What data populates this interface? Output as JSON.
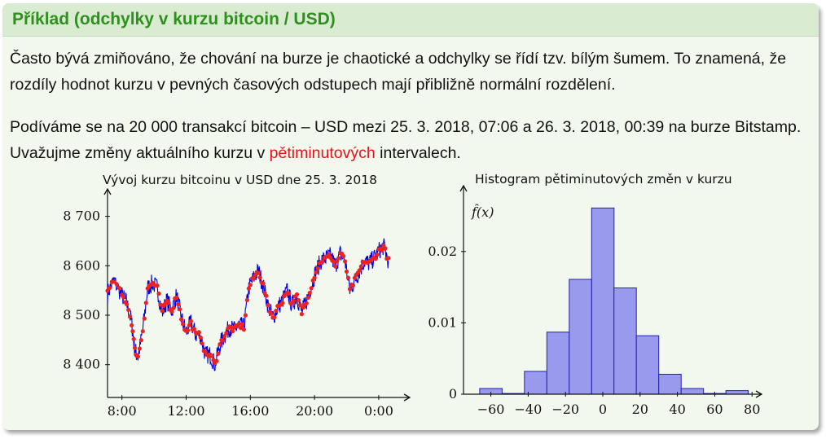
{
  "title": "Příklad (odchylky v kurzu bitcoin / USD)",
  "para1": "Často bývá zmiňováno, že chování na burze je chaotické a odchylky se řídí tzv. bílým šumem. To znamená, že rozdíly hodnot kurzu v pevných časových odstupech mají přibližně normální rozdělení.",
  "para2": {
    "before": "Podíváme se na 20 000 transakcí bitcoin – USD mezi 25. 3. 2018, 07:06 a 26. 3. 2018, 00:39 na burze Bitstamp. Uvažujme změny aktuálního kurzu v ",
    "highlight": "pětiminutových",
    "after": " intervalech."
  },
  "colors": {
    "title": "#2f8f1f",
    "highlight": "#e3131b",
    "line": "#0000dd",
    "dots": "#ee2222",
    "bars": "#9999ee"
  },
  "chart_data": [
    {
      "type": "line",
      "title": "Vývoj kurzu bitcoinu v USD dne 25. 3. 2018",
      "xticks": [
        "8:00",
        "12:00",
        "16:00",
        "20:00",
        "0:00"
      ],
      "yticks": [
        "8 400",
        "8 500",
        "8 600",
        "8 700"
      ],
      "ylim": [
        8370,
        8700
      ],
      "series": [
        {
          "x": [
            7.1,
            7.5,
            8.0,
            8.3,
            8.6,
            8.8,
            9.0,
            9.3,
            9.6,
            9.9,
            10.2,
            10.5,
            10.8,
            11.1,
            11.4,
            11.7,
            12.0,
            12.3,
            12.6,
            12.9,
            13.2,
            13.5,
            13.8,
            14.1,
            14.4,
            14.7,
            15.0,
            15.3,
            15.6,
            15.9,
            16.2,
            16.5,
            16.8,
            17.1,
            17.4,
            17.7,
            18.0,
            18.3,
            18.6,
            18.9,
            19.2,
            19.5,
            19.8,
            20.1,
            20.4,
            20.7,
            21.0,
            21.3,
            21.6,
            21.9,
            22.2,
            22.5,
            22.8,
            23.1,
            23.4,
            23.7,
            24.0,
            24.3,
            24.6
          ],
          "y": [
            8545,
            8570,
            8540,
            8525,
            8485,
            8430,
            8415,
            8470,
            8555,
            8565,
            8555,
            8505,
            8530,
            8510,
            8540,
            8495,
            8465,
            8485,
            8460,
            8460,
            8420,
            8420,
            8400,
            8440,
            8460,
            8475,
            8470,
            8480,
            8475,
            8555,
            8575,
            8590,
            8560,
            8520,
            8495,
            8515,
            8530,
            8550,
            8520,
            8540,
            8505,
            8530,
            8560,
            8590,
            8610,
            8615,
            8620,
            8600,
            8625,
            8610,
            8550,
            8570,
            8590,
            8610,
            8605,
            8615,
            8630,
            8640,
            8610
          ]
        }
      ]
    },
    {
      "type": "bar",
      "title": "Histogram pětiminutových změn v kurzu",
      "ylabel": "f̂(x)",
      "xticks": [
        "−60",
        "−40",
        "−20",
        "0",
        "20",
        "40",
        "60",
        "80"
      ],
      "yticks": [
        "0",
        "0.01",
        "0.02"
      ],
      "bin_width": 12,
      "bins": [
        -66,
        -54,
        -42,
        -30,
        -18,
        -6,
        6,
        18,
        30,
        42,
        54,
        66
      ],
      "values": [
        0.0008,
        0.0001,
        0.0032,
        0.0087,
        0.0161,
        0.0261,
        0.0149,
        0.0082,
        0.0028,
        0.0008,
        0.0001,
        0.0005
      ]
    }
  ]
}
